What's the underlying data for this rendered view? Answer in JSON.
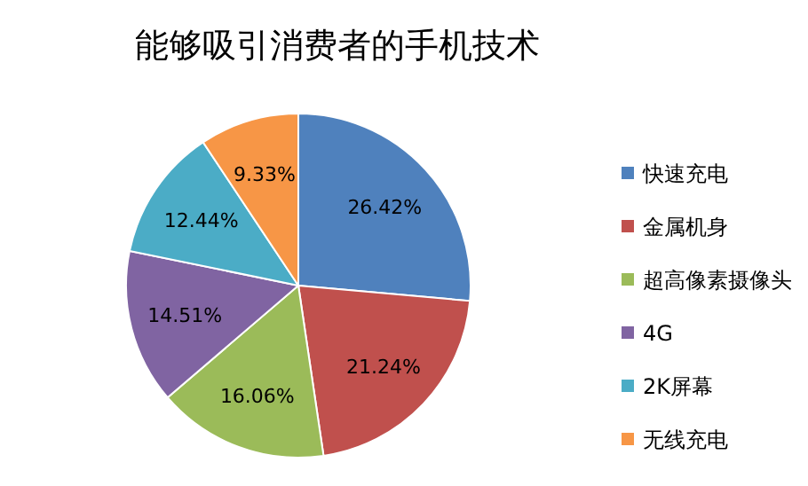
{
  "chart_data": {
    "type": "pie",
    "title": "能够吸引消费者的手机技术",
    "categories": [
      "快速充电",
      "金属机身",
      "超高像素摄像头",
      "4G",
      "2K屏幕",
      "无线充电"
    ],
    "values": [
      26.42,
      21.24,
      16.06,
      14.51,
      12.44,
      9.33
    ],
    "value_labels": [
      "26.42%",
      "21.24%",
      "16.06%",
      "14.51%",
      "12.44%",
      "9.33%"
    ],
    "colors": [
      "#4f81bd",
      "#c0504d",
      "#9bbb59",
      "#8064a2",
      "#4bacc6",
      "#f79646"
    ],
    "legend": "right"
  }
}
